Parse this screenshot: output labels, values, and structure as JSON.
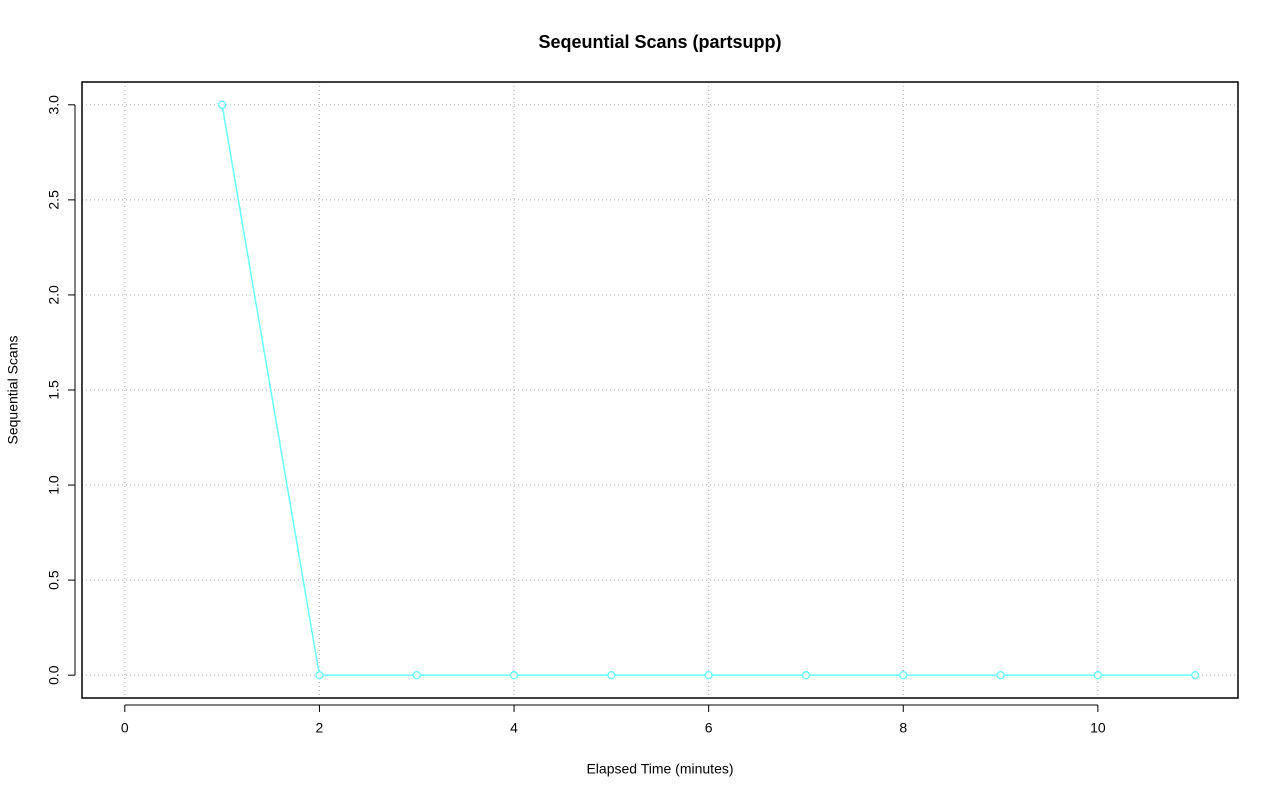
{
  "chart_data": {
    "type": "line",
    "title": "Seqeuntial Scans (partsupp)",
    "x_label": "Elapsed Time (minutes)",
    "y_label": "Sequential Scans",
    "series": [
      {
        "color": "#66ffff",
        "x": [
          1,
          2,
          3,
          4,
          5,
          6,
          7,
          8,
          9,
          10,
          11
        ],
        "values": [
          3,
          0,
          0,
          0,
          0,
          0,
          0,
          0,
          0,
          0,
          0
        ]
      }
    ],
    "xlim": [
      -0.44,
      11.44
    ],
    "ylim": [
      -0.12,
      3.12
    ],
    "xticks": [
      0,
      2,
      4,
      6,
      8,
      10
    ],
    "yticks": [
      {
        "value": 0,
        "label": "0.0"
      },
      {
        "value": 0.5,
        "label": "0.5"
      },
      {
        "value": 1,
        "label": "1.0"
      },
      {
        "value": 1.5,
        "label": "1.5"
      },
      {
        "value": 2,
        "label": "2.0"
      },
      {
        "value": 2.5,
        "label": "2.5"
      },
      {
        "value": 3,
        "label": "3.0"
      }
    ],
    "grid": true
  }
}
